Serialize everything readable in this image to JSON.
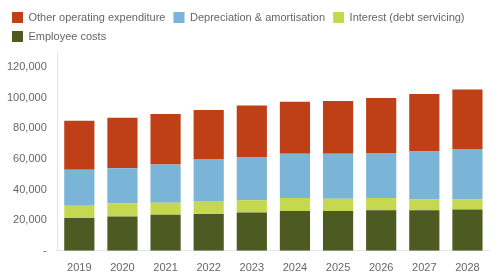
{
  "chart_data": {
    "type": "bar",
    "stacked": true,
    "grid": false,
    "legend": "upper left",
    "categories": [
      "2019",
      "2020",
      "2021",
      "2022",
      "2023",
      "2024",
      "2025",
      "2026",
      "2027",
      "2028"
    ],
    "series": [
      {
        "name": "Employee costs",
        "color": "#4d5a21",
        "values": [
          21500,
          22500,
          23500,
          24000,
          25000,
          26000,
          26000,
          26500,
          26500,
          27000
        ]
      },
      {
        "name": "Interest (debt servicing)",
        "color": "#c6d850",
        "values": [
          8000,
          8500,
          8000,
          8500,
          8000,
          8500,
          8000,
          8000,
          7000,
          6500
        ]
      },
      {
        "name": "Depreciation & amortisation",
        "color": "#7ab4d6",
        "values": [
          23500,
          23000,
          25000,
          27500,
          28000,
          29000,
          29500,
          29500,
          31500,
          33000
        ]
      },
      {
        "name": "Other operating expenditure",
        "color": "#bf4016",
        "values": [
          32000,
          33000,
          33000,
          32000,
          34000,
          34000,
          34500,
          36000,
          37500,
          39000
        ]
      }
    ],
    "ylim": [
      0,
      130000
    ],
    "yticks": [
      {
        "value": 0,
        "label": "-"
      },
      {
        "value": 20000,
        "label": "20,000"
      },
      {
        "value": 40000,
        "label": "40,000"
      },
      {
        "value": 60000,
        "label": "60,000"
      },
      {
        "value": 80000,
        "label": "80,000"
      },
      {
        "value": 100000,
        "label": "100,000"
      },
      {
        "value": 120000,
        "label": "120,000"
      }
    ]
  }
}
